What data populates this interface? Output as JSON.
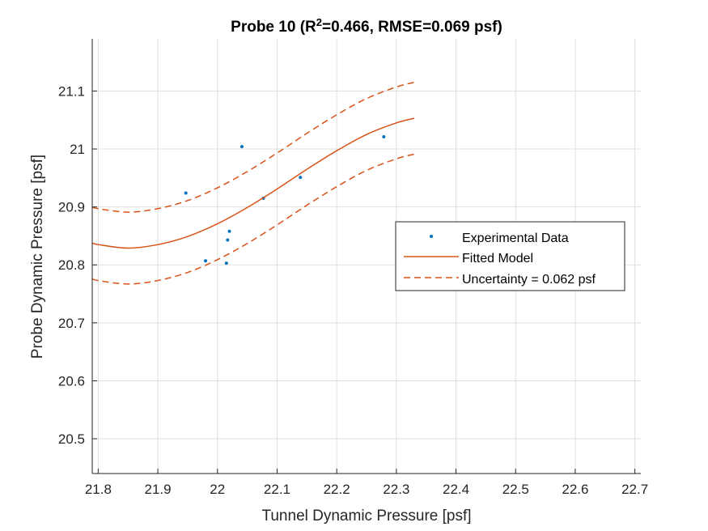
{
  "chart_data": {
    "type": "scatter",
    "title": {
      "prefix": "Probe 10 (R",
      "superscript": "2",
      "suffix": "=0.466, RMSE=0.069 psf)"
    },
    "xlabel": "Tunnel Dynamic Pressure [psf]",
    "ylabel": "Probe Dynamic Pressure [psf]",
    "xlim": [
      21.79,
      22.71
    ],
    "ylim": [
      20.44,
      21.19
    ],
    "xticks": [
      21.8,
      21.9,
      22,
      22.1,
      22.2,
      22.3,
      22.4,
      22.5,
      22.6,
      22.7
    ],
    "xtick_labels": [
      "21.8",
      "21.9",
      "22",
      "22.1",
      "22.2",
      "22.3",
      "22.4",
      "22.5",
      "22.6",
      "22.7"
    ],
    "yticks": [
      20.5,
      20.6,
      20.7,
      20.8,
      20.9,
      21.0,
      21.1
    ],
    "ytick_labels": [
      "20.5",
      "20.6",
      "20.7",
      "20.8",
      "20.9",
      "21",
      "21.1"
    ],
    "grid": true,
    "legend_position": "right",
    "series": [
      {
        "name": "Experimental Data",
        "style": "markers",
        "color": "#0072BD",
        "x": [
          21.947,
          21.98,
          22.015,
          22.017,
          22.02,
          22.041,
          22.077,
          22.139,
          22.279
        ],
        "y": [
          20.924,
          20.807,
          20.803,
          20.843,
          20.858,
          21.004,
          20.915,
          20.951,
          21.021
        ]
      },
      {
        "name": "Fitted Model",
        "style": "solid",
        "color": "#D95319",
        "x": [
          21.79,
          21.8,
          21.85,
          21.9,
          21.95,
          22.0,
          22.05,
          22.1,
          22.15,
          22.2,
          22.25,
          22.3,
          22.33
        ],
        "y": [
          20.838,
          20.835,
          20.829,
          20.835,
          20.849,
          20.871,
          20.899,
          20.931,
          20.965,
          20.997,
          21.025,
          21.045,
          21.053
        ]
      },
      {
        "name": "Uncertainty = 0.062 psf",
        "style": "dashed",
        "color": "#D95319",
        "x": [
          21.79,
          21.8,
          21.85,
          21.9,
          21.95,
          22.0,
          22.05,
          22.1,
          22.15,
          22.2,
          22.25,
          22.3,
          22.33
        ],
        "y": [
          20.9,
          20.897,
          20.891,
          20.897,
          20.911,
          20.933,
          20.961,
          20.993,
          21.027,
          21.059,
          21.087,
          21.107,
          21.115
        ]
      },
      {
        "name": "",
        "style": "dashed",
        "color": "#D95319",
        "x": [
          21.79,
          21.8,
          21.85,
          21.9,
          21.95,
          22.0,
          22.05,
          22.1,
          22.15,
          22.2,
          22.25,
          22.3,
          22.33
        ],
        "y": [
          20.776,
          20.773,
          20.767,
          20.773,
          20.787,
          20.809,
          20.837,
          20.869,
          20.903,
          20.935,
          20.963,
          20.983,
          20.991
        ]
      }
    ],
    "legend": [
      "Experimental Data",
      "Fitted Model",
      "Uncertainty = 0.062 psf"
    ]
  }
}
